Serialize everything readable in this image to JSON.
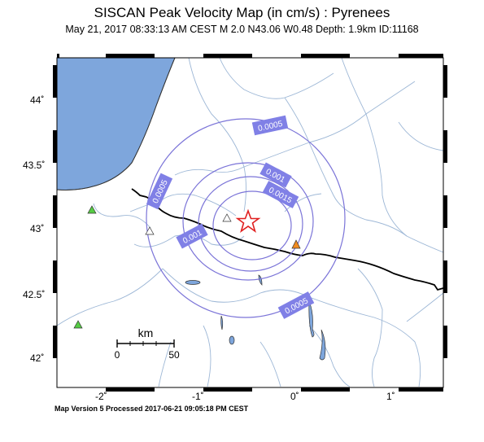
{
  "title": "SISCAN Peak Velocity Map (in cm/s) : Pyrenees",
  "subtitle": "May 21, 2017 08:33:13 AM CEST   M 2.0   N43.06 W0.48   Depth: 1.9km   ID:11168",
  "footer": "Map Version 5 Processed 2017-06-21 09:05:18 PM CEST",
  "axes": {
    "lat_labels": [
      "44˚",
      "43.5˚",
      "43˚",
      "42.5˚",
      "42˚"
    ],
    "lon_labels": [
      "-2˚",
      "-1˚",
      "0˚",
      "1˚"
    ]
  },
  "scalebar": {
    "unit": "km",
    "start": "0",
    "end": "50"
  },
  "contour_labels": {
    "c1": "0.0005",
    "c2": "0.0005",
    "c3": "0.001",
    "c4": "0.0015",
    "c5": "0.001",
    "c6": "0.0005"
  },
  "epicenter": {
    "lat": 43.06,
    "lon": -0.48,
    "symbol": "star-icon"
  },
  "colors": {
    "sea": "#7ea6dc",
    "contour": "#7b74d8",
    "label_bg": "#8080e6",
    "epicenter": "#e02020",
    "station_green": "#55cc44",
    "station_orange": "#f08a20",
    "rivers": "#9db7d6",
    "border": "#000000"
  }
}
